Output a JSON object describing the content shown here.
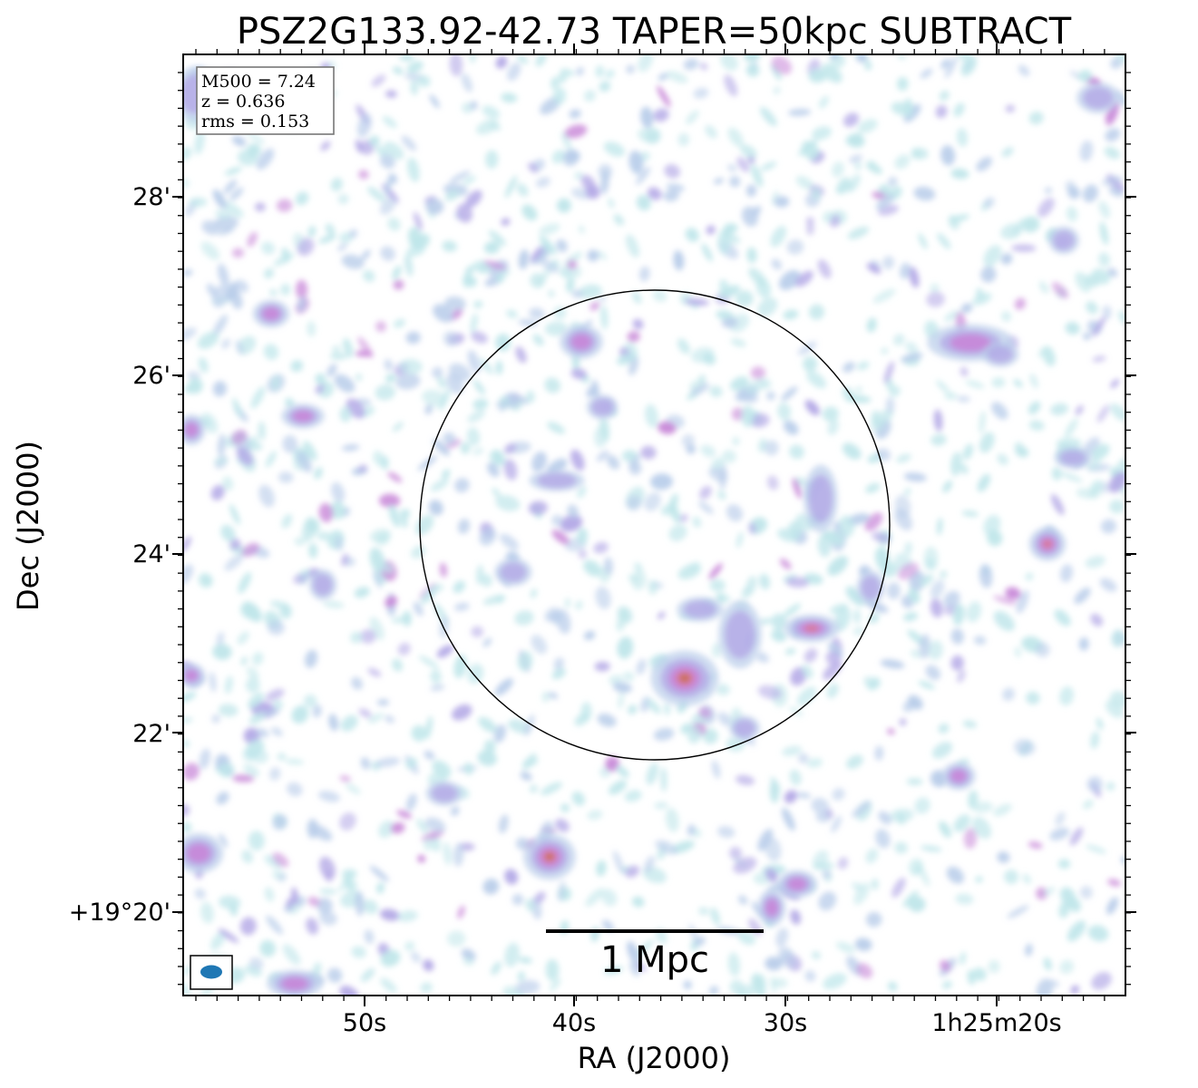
{
  "chart_data": {
    "type": "heatmap",
    "title": "PSZ2G133.92-42.73 TAPER=50kpc SUBTRACT",
    "xlabel": "RA (J2000)",
    "ylabel": "Dec (J2000)",
    "x_ticks": [
      "50s",
      "40s",
      "30s",
      "1h25m20s"
    ],
    "y_ticks": [
      "28'",
      "26'",
      "24'",
      "22'",
      "+19°20'"
    ],
    "info": {
      "m500": "M500 = 7.24",
      "z": "z = 0.636",
      "rms": "rms = 0.153"
    },
    "scale_bar_label": "1 Mpc",
    "colormap_colors": [
      "#bfe6ea",
      "#b9cdea",
      "#b3a8e6",
      "#c887d8",
      "#d77a9c",
      "#c9704f"
    ],
    "blobs": [
      {
        "ra": "1h25m35s",
        "dec": "+19°22.6'",
        "peak": "high"
      },
      {
        "ra": "1h25m41s",
        "dec": "+19°20.6'",
        "peak": "high"
      },
      {
        "ra": "1h25m29s",
        "dec": "+19°23.2'",
        "peak": "medium"
      },
      {
        "ra": "1h25m19s",
        "dec": "+19°24.1'",
        "peak": "medium"
      },
      {
        "ra": "1h25m39s",
        "dec": "+19°26.4'",
        "peak": "medium"
      }
    ]
  },
  "accessories": {
    "circle": "r500 circle",
    "beam": "beam ellipse"
  }
}
